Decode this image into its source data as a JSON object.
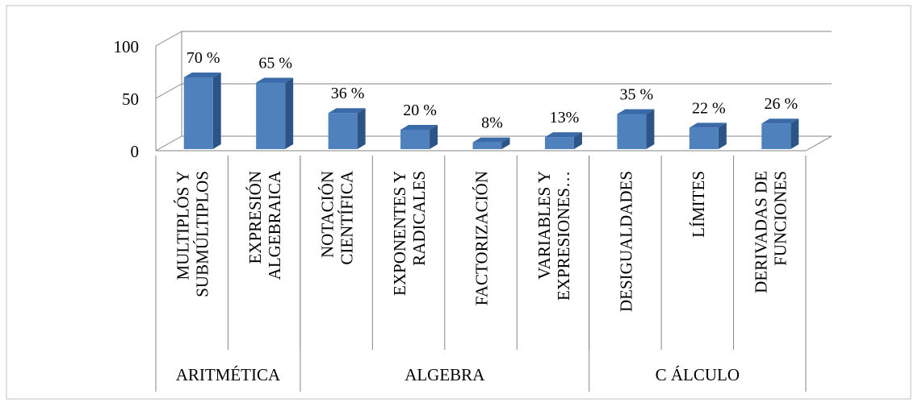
{
  "chart_data": {
    "type": "bar",
    "bar_style": "3d",
    "categories": [
      [
        "MULTIPLÓS Y",
        "SUBMÚLTIPLOS"
      ],
      [
        "EXPRESIÓN",
        "ALGEBRAICA"
      ],
      [
        "NOTACIÓN",
        "CIENTÍFICA"
      ],
      [
        "EXPONENTES Y",
        "RADICALES"
      ],
      [
        "FACTORIZACIÓN"
      ],
      [
        "VARIABLES Y",
        "EXPRESIONES…"
      ],
      [
        "DESIGUALDADES"
      ],
      [
        "LÍMITES"
      ],
      [
        "DERIVADAS DE",
        "FUNCIONES"
      ]
    ],
    "values": [
      70,
      65,
      36,
      20,
      8,
      13,
      35,
      22,
      26
    ],
    "value_labels": [
      "70 %",
      "65 %",
      "36 %",
      "20 %",
      "8%",
      "13%",
      "35 %",
      "22 %",
      "26 %"
    ],
    "groups": [
      {
        "label": "ARITMÉTICA",
        "count": 2
      },
      {
        "label": "ALGEBRA",
        "count": 4
      },
      {
        "label": "C ÁLCULO",
        "count": 3
      }
    ],
    "yticks": [
      "0",
      "50",
      "100"
    ],
    "ylim": [
      0,
      100
    ],
    "grid": true,
    "bar_color": "#4f81bd",
    "bar_top_color": "#3a6aa8",
    "bar_side_color": "#2d5486"
  }
}
